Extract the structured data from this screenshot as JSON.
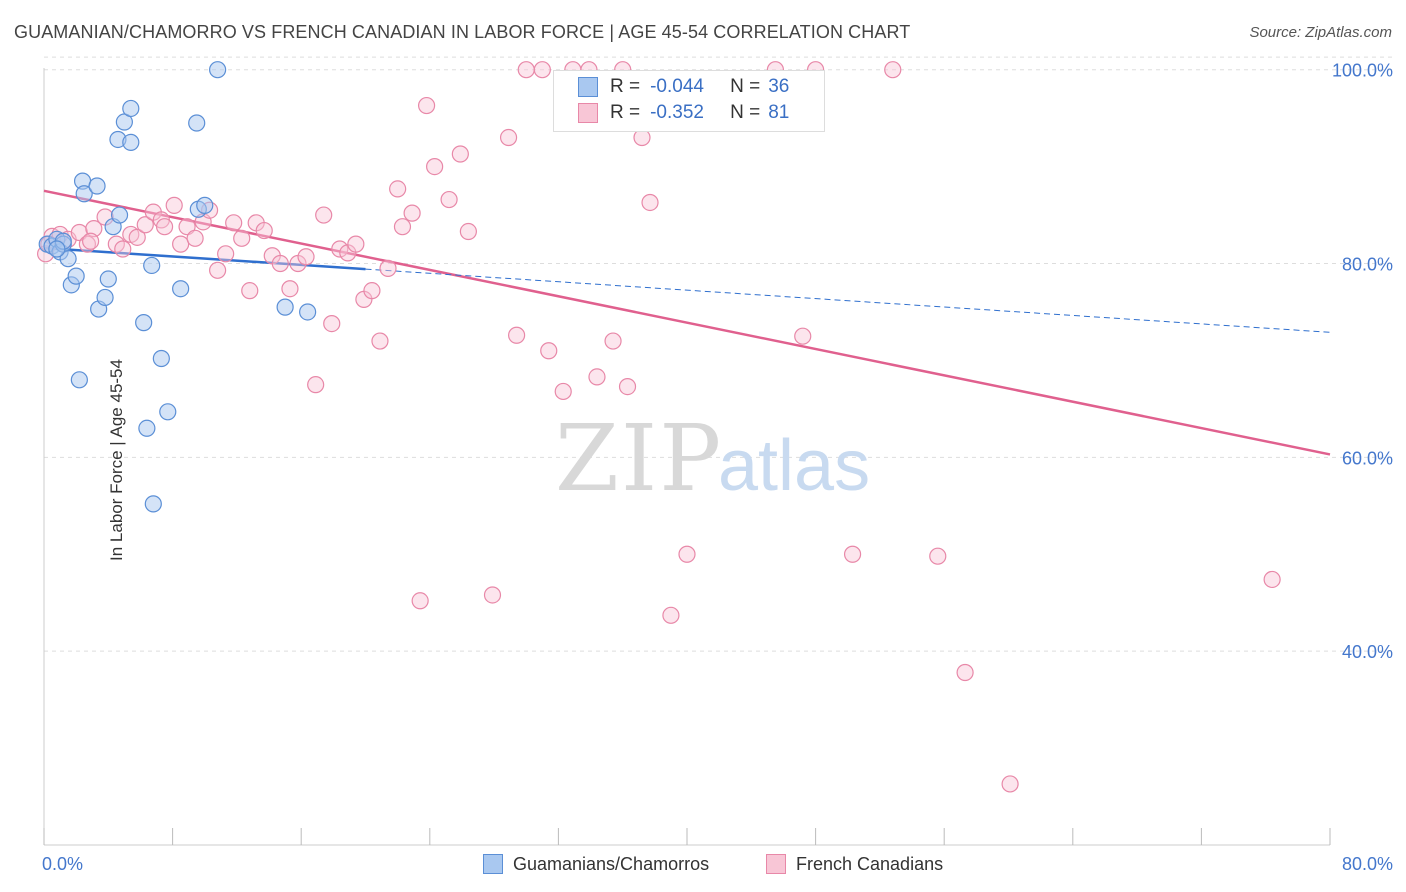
{
  "title": "GUAMANIAN/CHAMORRO VS FRENCH CANADIAN IN LABOR FORCE | AGE 45-54 CORRELATION CHART",
  "source": "Source: ZipAtlas.com",
  "watermark": {
    "zip": "ZIP",
    "atlas": "atlas"
  },
  "legend": {
    "r_label": "R =",
    "n_label": "N =",
    "series": [
      {
        "r": "-0.044",
        "n": "36"
      },
      {
        "r": "-0.352",
        "n": "81"
      }
    ]
  },
  "bottom_legend": [
    "Guamanians/Chamorros",
    "French Canadians"
  ],
  "colors": {
    "blue_fill": "#a9c8f0",
    "blue_stroke": "#5b8fd6",
    "blue_line": "#2f6fce",
    "pink_fill": "#f8c6d6",
    "pink_stroke": "#e888a8",
    "pink_line": "#e0608e",
    "axis_text": "#4477cc",
    "grid": "#dddddd"
  },
  "chart_data": {
    "type": "scatter",
    "ylabel": "In Labor Force | Age 45-54",
    "x_tick_labels": [
      "0.0%",
      "80.0%"
    ],
    "y_tick_labels": [
      "100.0%",
      "80.0%",
      "60.0%",
      "40.0%"
    ],
    "xlim": [
      0,
      80
    ],
    "ylim": [
      20,
      101
    ],
    "y_ticks": [
      100,
      80,
      60,
      40
    ],
    "x_minor_ticks": [
      0,
      8,
      16,
      24,
      32,
      40,
      48,
      56,
      64,
      72,
      80
    ],
    "series": [
      {
        "name": "Guamanians/Chamorros",
        "points": [
          [
            0.2,
            82.0
          ],
          [
            0.5,
            81.8
          ],
          [
            0.8,
            82.5
          ],
          [
            1.0,
            81.2
          ],
          [
            1.2,
            82.0
          ],
          [
            1.5,
            80.5
          ],
          [
            1.7,
            77.8
          ],
          [
            2.0,
            78.7
          ],
          [
            2.4,
            88.5
          ],
          [
            2.5,
            87.2
          ],
          [
            3.3,
            88.0
          ],
          [
            3.4,
            75.3
          ],
          [
            3.8,
            76.5
          ],
          [
            4.0,
            78.4
          ],
          [
            4.3,
            83.8
          ],
          [
            4.7,
            85.0
          ],
          [
            5.0,
            94.6
          ],
          [
            5.4,
            96.0
          ],
          [
            4.6,
            92.8
          ],
          [
            5.4,
            92.5
          ],
          [
            6.2,
            73.9
          ],
          [
            6.7,
            79.8
          ],
          [
            7.3,
            70.2
          ],
          [
            7.7,
            64.7
          ],
          [
            6.4,
            63.0
          ],
          [
            6.8,
            55.2
          ],
          [
            8.5,
            77.4
          ],
          [
            9.5,
            94.5
          ],
          [
            9.6,
            85.6
          ],
          [
            10.0,
            86.0
          ],
          [
            10.8,
            100.0
          ],
          [
            15.0,
            75.5
          ],
          [
            16.4,
            75.0
          ],
          [
            2.2,
            68.0
          ],
          [
            1.2,
            82.3
          ],
          [
            0.8,
            81.5
          ]
        ],
        "trend": {
          "x": [
            0,
            80
          ],
          "y": [
            81.6,
            72.9
          ],
          "solid_until": 20
        }
      },
      {
        "name": "French Canadians",
        "points": [
          [
            0.1,
            81.0
          ],
          [
            0.5,
            82.8
          ],
          [
            1.0,
            83.0
          ],
          [
            1.5,
            82.5
          ],
          [
            2.2,
            83.2
          ],
          [
            2.7,
            82.0
          ],
          [
            3.1,
            83.6
          ],
          [
            3.8,
            84.8
          ],
          [
            4.5,
            82.0
          ],
          [
            4.9,
            81.5
          ],
          [
            5.4,
            83.0
          ],
          [
            5.8,
            82.7
          ],
          [
            6.3,
            84.0
          ],
          [
            6.8,
            85.3
          ],
          [
            7.3,
            84.5
          ],
          [
            7.5,
            83.8
          ],
          [
            8.1,
            86.0
          ],
          [
            8.5,
            82.0
          ],
          [
            8.9,
            83.8
          ],
          [
            9.4,
            82.6
          ],
          [
            9.9,
            84.3
          ],
          [
            10.3,
            85.5
          ],
          [
            10.8,
            79.3
          ],
          [
            11.3,
            81.0
          ],
          [
            11.8,
            84.2
          ],
          [
            12.3,
            82.6
          ],
          [
            12.8,
            77.2
          ],
          [
            13.2,
            84.2
          ],
          [
            13.7,
            83.4
          ],
          [
            14.2,
            80.8
          ],
          [
            14.7,
            80.0
          ],
          [
            15.3,
            77.4
          ],
          [
            15.8,
            80.0
          ],
          [
            16.3,
            80.7
          ],
          [
            16.9,
            67.5
          ],
          [
            17.4,
            85.0
          ],
          [
            17.9,
            73.8
          ],
          [
            18.4,
            81.5
          ],
          [
            18.9,
            81.1
          ],
          [
            19.4,
            82.0
          ],
          [
            19.9,
            76.3
          ],
          [
            20.4,
            77.2
          ],
          [
            20.9,
            72.0
          ],
          [
            21.4,
            79.5
          ],
          [
            22.0,
            87.7
          ],
          [
            22.3,
            83.8
          ],
          [
            22.9,
            85.2
          ],
          [
            23.4,
            45.2
          ],
          [
            23.8,
            96.3
          ],
          [
            24.3,
            90.0
          ],
          [
            25.2,
            86.6
          ],
          [
            25.9,
            91.3
          ],
          [
            26.4,
            83.3
          ],
          [
            27.9,
            45.8
          ],
          [
            28.9,
            93.0
          ],
          [
            29.4,
            72.6
          ],
          [
            30.0,
            100.0
          ],
          [
            31.0,
            100.0
          ],
          [
            31.4,
            71.0
          ],
          [
            32.3,
            66.8
          ],
          [
            32.9,
            100.0
          ],
          [
            33.9,
            100.0
          ],
          [
            34.4,
            68.3
          ],
          [
            35.4,
            72.0
          ],
          [
            36.0,
            100.0
          ],
          [
            36.3,
            67.3
          ],
          [
            37.2,
            93.0
          ],
          [
            37.7,
            86.3
          ],
          [
            39.0,
            43.7
          ],
          [
            40.0,
            50.0
          ],
          [
            45.5,
            100.0
          ],
          [
            47.2,
            72.5
          ],
          [
            48.0,
            100.0
          ],
          [
            50.3,
            50.0
          ],
          [
            52.8,
            100.0
          ],
          [
            55.6,
            49.8
          ],
          [
            57.3,
            37.8
          ],
          [
            60.1,
            26.3
          ],
          [
            76.4,
            47.4
          ],
          [
            0.3,
            82.0
          ],
          [
            2.9,
            82.3
          ]
        ],
        "trend": {
          "x": [
            0,
            80
          ],
          "y": [
            87.5,
            60.3
          ]
        }
      }
    ]
  }
}
